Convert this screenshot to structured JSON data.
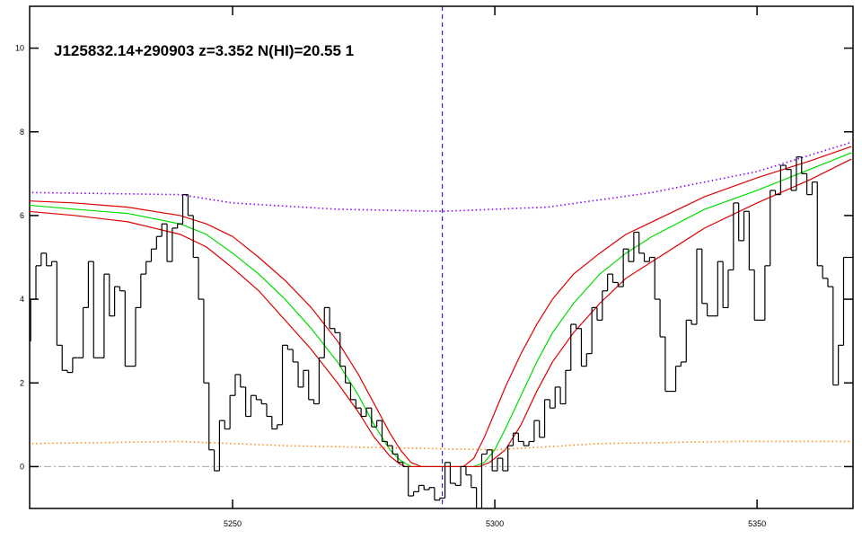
{
  "chart_data": {
    "type": "line",
    "title": "J125832.14+290903 z=3.352 N(HI)=20.55 1",
    "x": [
      5211,
      5212,
      5213,
      5214,
      5215,
      5216,
      5217,
      5218,
      5219,
      5220,
      5221,
      5222,
      5223,
      5224,
      5225,
      5226,
      5227,
      5228,
      5229,
      5230,
      5231,
      5232,
      5233,
      5234,
      5235,
      5236,
      5237,
      5238,
      5239,
      5240,
      5241,
      5242,
      5243,
      5244,
      5245,
      5246,
      5247,
      5248,
      5249,
      5250,
      5251,
      5252,
      5253,
      5254,
      5255,
      5256,
      5257,
      5258,
      5259,
      5260,
      5261,
      5262,
      5263,
      5264,
      5265,
      5266,
      5267,
      5268,
      5269,
      5270,
      5271,
      5272,
      5273,
      5274,
      5275,
      5276,
      5277,
      5278,
      5279,
      5280,
      5281,
      5282,
      5283,
      5284,
      5285,
      5286,
      5287,
      5288,
      5289,
      5290,
      5291,
      5292,
      5293,
      5294,
      5295,
      5296,
      5297,
      5298,
      5299,
      5300,
      5301,
      5302,
      5303,
      5304,
      5305,
      5306,
      5307,
      5308,
      5309,
      5310,
      5311,
      5312,
      5313,
      5314,
      5315,
      5316,
      5317,
      5318,
      5319,
      5320,
      5321,
      5322,
      5323,
      5324,
      5325,
      5326,
      5327,
      5328,
      5329,
      5330,
      5331,
      5332,
      5333,
      5334,
      5335,
      5336,
      5337,
      5338,
      5339,
      5340,
      5341,
      5342,
      5343,
      5344,
      5345,
      5346,
      5347,
      5348,
      5349,
      5350,
      5351,
      5352,
      5353,
      5354,
      5355,
      5356,
      5357,
      5358,
      5359,
      5360,
      5361,
      5362,
      5363,
      5364,
      5365,
      5366,
      5367,
      5368
    ],
    "values": [
      3.0,
      4.0,
      4.8,
      5.1,
      4.8,
      4.9,
      2.9,
      2.3,
      2.25,
      2.6,
      2.6,
      3.8,
      4.9,
      2.6,
      2.6,
      4.6,
      3.6,
      4.3,
      4.2,
      2.4,
      2.4,
      3.8,
      4.6,
      4.9,
      5.2,
      5.5,
      5.8,
      4.9,
      5.7,
      5.8,
      6.5,
      6.0,
      5.0,
      4.0,
      2.0,
      0.4,
      -0.1,
      1.1,
      0.9,
      1.7,
      2.2,
      1.9,
      1.2,
      1.7,
      1.6,
      1.5,
      1.2,
      0.9,
      1.0,
      2.9,
      2.8,
      2.5,
      1.9,
      2.3,
      1.6,
      1.5,
      2.6,
      3.8,
      3.3,
      3.2,
      2.4,
      2.0,
      1.6,
      1.4,
      1.2,
      1.4,
      0.95,
      1.1,
      0.6,
      0.5,
      0.3,
      0.1,
      0.0,
      -0.7,
      -0.6,
      -0.45,
      -0.55,
      -0.5,
      -0.8,
      -0.75,
      0.1,
      -0.4,
      -0.45,
      0.0,
      -0.2,
      -0.5,
      -1.0,
      0.3,
      0.4,
      -0.1,
      0.2,
      -0.1,
      0.5,
      0.8,
      0.6,
      0.5,
      0.6,
      1.1,
      0.7,
      1.6,
      1.4,
      1.9,
      1.5,
      2.3,
      3.4,
      3.3,
      2.4,
      2.7,
      3.8,
      3.5,
      4.2,
      4.6,
      4.4,
      4.3,
      5.2,
      4.9,
      5.6,
      5.1,
      4.9,
      5.0,
      4.0,
      3.1,
      1.8,
      1.8,
      2.4,
      2.5,
      3.5,
      3.4,
      5.2,
      3.9,
      3.6,
      3.6,
      4.9,
      3.8,
      4.7,
      6.3,
      5.4,
      6.1,
      4.7,
      3.5,
      3.5,
      4.8,
      6.6,
      6.5,
      7.2,
      7.1,
      6.6,
      7.4,
      7.0,
      6.5,
      6.8,
      4.8,
      4.5,
      4.3,
      1.95,
      2.9,
      5.0,
      5.0
    ],
    "color": "#000000",
    "series": [
      {
        "color": "#00dd00",
        "style": "solid",
        "x": [
          5211,
          5220,
          5230,
          5240,
          5245,
          5250,
          5255,
          5260,
          5265,
          5270,
          5274,
          5277,
          5280,
          5282,
          5284,
          5296,
          5298,
          5300,
          5302,
          5305,
          5308,
          5311,
          5315,
          5320,
          5325,
          5330,
          5340,
          5350,
          5360,
          5368
        ],
        "values": [
          6.25,
          6.15,
          6.05,
          5.8,
          5.55,
          5.1,
          4.6,
          4.0,
          3.3,
          2.5,
          1.7,
          1.0,
          0.4,
          0.15,
          0.0,
          0.0,
          0.1,
          0.4,
          0.9,
          1.7,
          2.5,
          3.2,
          3.9,
          4.6,
          5.1,
          5.5,
          6.15,
          6.6,
          7.1,
          7.5
        ]
      },
      {
        "color": "#dd0000",
        "style": "solid",
        "x": [
          5211,
          5220,
          5230,
          5240,
          5245,
          5250,
          5255,
          5260,
          5265,
          5270,
          5274,
          5277,
          5280,
          5282,
          5284,
          5286,
          5294,
          5296,
          5298,
          5300,
          5302,
          5305,
          5308,
          5311,
          5315,
          5320,
          5325,
          5330,
          5340,
          5350,
          5360,
          5368
        ],
        "values": [
          6.35,
          6.3,
          6.2,
          6.0,
          5.8,
          5.5,
          5.0,
          4.45,
          3.8,
          3.0,
          2.2,
          1.5,
          0.8,
          0.4,
          0.1,
          0.0,
          0.0,
          0.2,
          0.7,
          1.3,
          1.9,
          2.7,
          3.4,
          4.0,
          4.6,
          5.1,
          5.55,
          5.85,
          6.45,
          6.9,
          7.3,
          7.65
        ]
      },
      {
        "color": "#dd0000",
        "style": "solid",
        "x": [
          5211,
          5220,
          5230,
          5240,
          5245,
          5250,
          5255,
          5260,
          5265,
          5270,
          5274,
          5277,
          5280,
          5282,
          5283,
          5297,
          5299,
          5302,
          5305,
          5308,
          5311,
          5315,
          5320,
          5325,
          5330,
          5340,
          5350,
          5360,
          5368
        ],
        "values": [
          6.1,
          6.0,
          5.85,
          5.55,
          5.25,
          4.75,
          4.2,
          3.5,
          2.8,
          2.0,
          1.3,
          0.7,
          0.25,
          0.05,
          0.0,
          0.0,
          0.1,
          0.4,
          1.0,
          1.8,
          2.5,
          3.2,
          3.9,
          4.5,
          4.9,
          5.7,
          6.3,
          6.85,
          7.35
        ]
      },
      {
        "color": "#8a00ff",
        "style": "dotted",
        "x": [
          5211,
          5240,
          5250,
          5270,
          5290,
          5310,
          5330,
          5350,
          5368
        ],
        "values": [
          6.55,
          6.5,
          6.3,
          6.15,
          6.1,
          6.2,
          6.55,
          7.05,
          7.75
        ]
      },
      {
        "color": "#ff8c1a",
        "style": "dotted",
        "x": [
          5211,
          5240,
          5260,
          5280,
          5300,
          5320,
          5345,
          5368
        ],
        "values": [
          0.55,
          0.6,
          0.5,
          0.45,
          0.4,
          0.55,
          0.6,
          0.6
        ]
      }
    ],
    "vline": {
      "x": 5290,
      "color": "#0000cc",
      "style": "dashed"
    },
    "hline": {
      "y": 0,
      "color": "#aaaaaa",
      "style": "dashdot"
    },
    "xlim": [
      5211.3,
      5368.3
    ],
    "ylim": [
      -1,
      11
    ],
    "xticks": [
      5250,
      5300,
      5350
    ],
    "yticks": [
      0,
      2,
      4,
      6,
      8,
      10
    ]
  }
}
